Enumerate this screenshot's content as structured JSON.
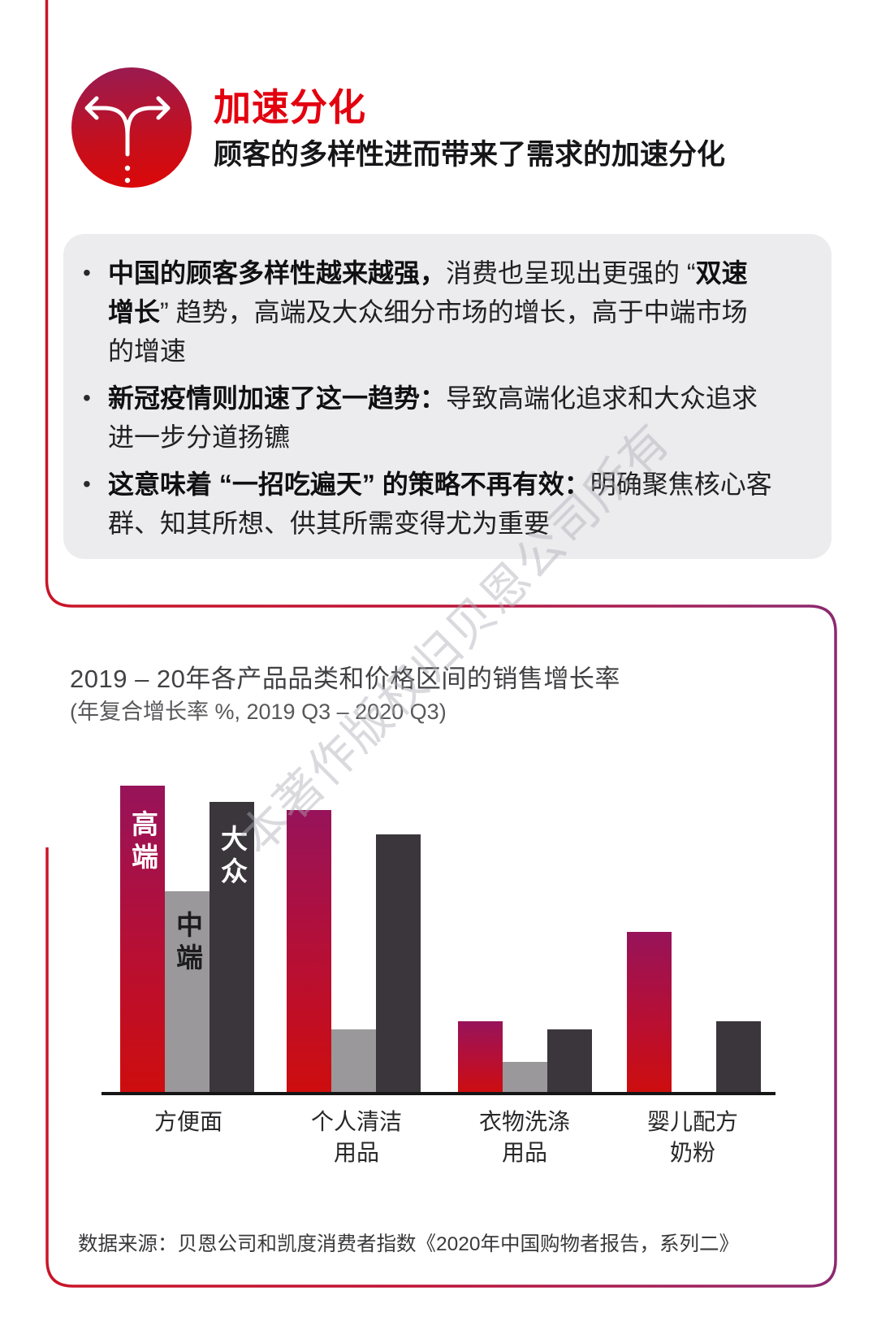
{
  "page": {
    "watermark": "本著作版权归贝恩公司所有"
  },
  "header": {
    "title": "加速分化",
    "subtitle": "顾客的多样性进而带来了需求的加速分化",
    "title_color": "#E3000F",
    "icon": "split-arrows-icon"
  },
  "summary": {
    "bullets": [
      {
        "s1": "中国的顾客多样性越来越强，",
        "s2": "消费也呈现出更强的 “",
        "s3": "双速\n增长",
        "s4": "” 趋势，高端及大众细分市场的增长，高于中端市场\n的增速"
      },
      {
        "s1": "新冠疫情则加速了这一趋势：",
        "s2": "导致高端化追求和大众追求\n进一步分道扬镳",
        "s3": "",
        "s4": ""
      },
      {
        "s1": "这意味着 “一招吃遍天” 的策略不再有效：",
        "s2": "明确聚焦核心客\n群、知其所想、供其所需变得尤为重要",
        "s3": "",
        "s4": ""
      }
    ]
  },
  "chart": {
    "title": "2019 – 20年各产品品类和价格区间的销售增长率",
    "subtitle": "(年复合增长率 %, 2019 Q3 – 2020 Q3)",
    "source": "数据来源：贝恩公司和凯度消费者指数《2020年中国购物者报告，系列二》"
  },
  "chart_data": {
    "type": "bar",
    "title": "2019 – 20年各产品品类和价格区间的销售增长率",
    "ylabel": "年复合增长率 %",
    "period": "2019 Q3 – 2020 Q3",
    "categories": [
      "方便面",
      "个人清洁\n用品",
      "衣物洗涤\n用品",
      "婴儿配方\n奶粉"
    ],
    "series": [
      {
        "name": "高端",
        "values": [
          19,
          17.5,
          4.5,
          10
        ],
        "color_top": "#97135A",
        "color_mid": "#B80F33",
        "color_bottom": "#CE0D0D",
        "label_color": "#FFFFFF"
      },
      {
        "name": "中端",
        "values": [
          12.5,
          4,
          2,
          0
        ],
        "color": "#9A989A",
        "label_color": "#1C1C1E"
      },
      {
        "name": "大众",
        "values": [
          18,
          16,
          4,
          4.5
        ],
        "color": "#3A363C",
        "label_color": "#FFFFFF"
      }
    ],
    "ylim": [
      0,
      21
    ],
    "grid": false,
    "legend_position": "inside-first-group",
    "accent_border_gradient": [
      "#CA1528",
      "#8B2A70"
    ],
    "axis_color": "#161616"
  }
}
